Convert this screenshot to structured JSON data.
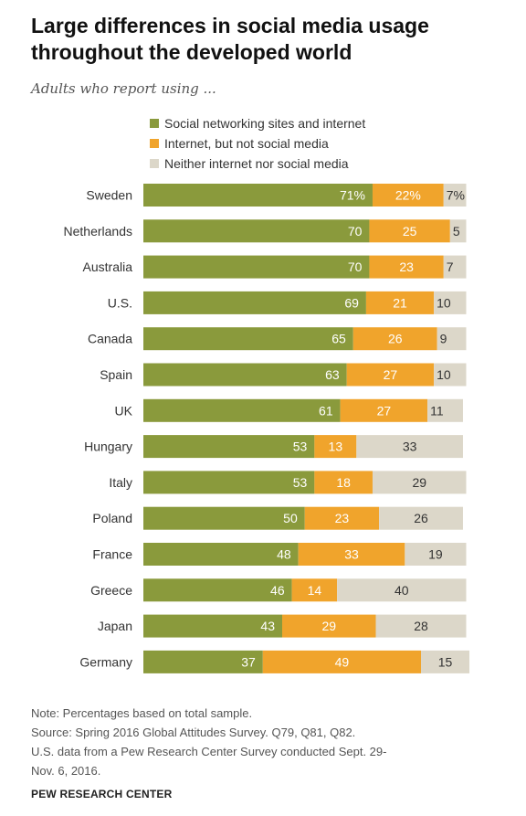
{
  "header": {
    "title_line1": "Large differences in social media usage",
    "title_line2": "throughout the developed world",
    "subtitle": "Adults who report using ..."
  },
  "legend": [
    {
      "label": "Social networking sites and internet",
      "color": "#8a9a3c"
    },
    {
      "label": "Internet, but not social media",
      "color": "#f0a42c"
    },
    {
      "label": "Neither internet nor social media",
      "color": "#dcd7c9"
    }
  ],
  "chart_data": {
    "type": "bar",
    "orientation": "horizontal",
    "stacked": true,
    "categories": [
      "Sweden",
      "Netherlands",
      "Australia",
      "U.S.",
      "Canada",
      "Spain",
      "UK",
      "Hungary",
      "Italy",
      "Poland",
      "France",
      "Greece",
      "Japan",
      "Germany"
    ],
    "series": [
      {
        "name": "Social networking sites and internet",
        "color": "#8a9a3c",
        "values": [
          71,
          70,
          70,
          69,
          65,
          63,
          61,
          53,
          53,
          50,
          48,
          46,
          43,
          37
        ]
      },
      {
        "name": "Internet, but not social media",
        "color": "#f0a42c",
        "values": [
          22,
          25,
          23,
          21,
          26,
          27,
          27,
          13,
          18,
          23,
          33,
          14,
          29,
          49
        ]
      },
      {
        "name": "Neither internet nor social media",
        "color": "#dcd7c9",
        "values": [
          7,
          5,
          7,
          10,
          9,
          10,
          11,
          33,
          29,
          26,
          19,
          40,
          28,
          15
        ]
      }
    ],
    "first_row_labels": [
      "71%",
      "22%",
      "7%"
    ],
    "xlim": [
      0,
      100
    ],
    "legend_position": "top",
    "grid": false
  },
  "footer": {
    "note_lines": [
      "Note: Percentages based on total sample.",
      "Source: Spring 2016 Global Attitudes Survey. Q79, Q81, Q82.",
      "U.S. data from a Pew Research Center Survey conducted Sept. 29-",
      "Nov. 6, 2016."
    ],
    "brand": "PEW RESEARCH CENTER"
  }
}
